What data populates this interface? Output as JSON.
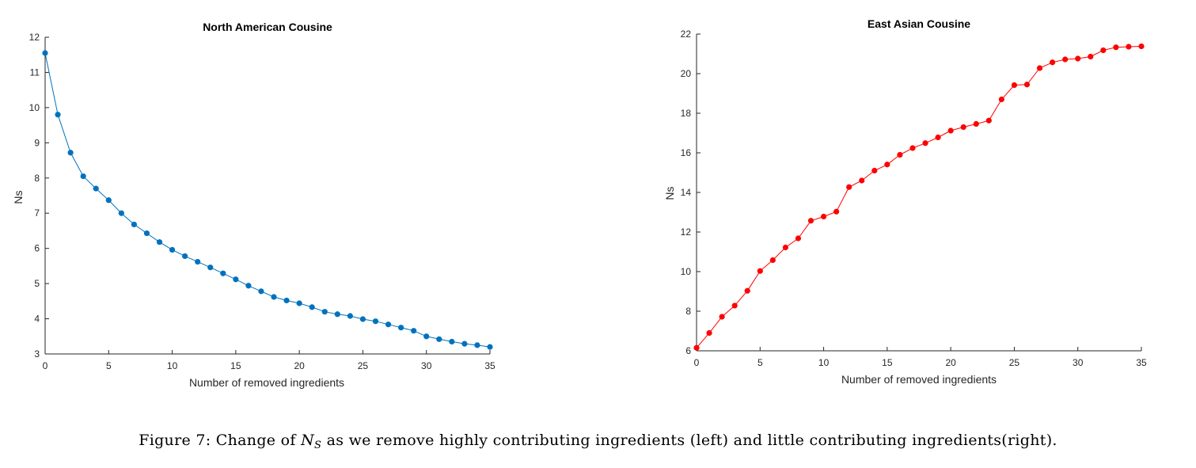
{
  "chart_data": [
    {
      "type": "line",
      "title": "North American Cousine",
      "xlabel": "Number of removed ingredients",
      "ylabel": "Ns",
      "xlim": [
        0,
        35
      ],
      "ylim": [
        3,
        12
      ],
      "xticks": [
        0,
        5,
        10,
        15,
        20,
        25,
        30,
        35
      ],
      "yticks": [
        3,
        4,
        5,
        6,
        7,
        8,
        9,
        10,
        11,
        12
      ],
      "grid": false,
      "color": "#0072BD",
      "x": [
        0,
        1,
        2,
        3,
        4,
        5,
        6,
        7,
        8,
        9,
        10,
        11,
        12,
        13,
        14,
        15,
        16,
        17,
        18,
        19,
        20,
        21,
        22,
        23,
        24,
        25,
        26,
        27,
        28,
        29,
        30,
        31,
        32,
        33,
        34,
        35
      ],
      "y": [
        11.55,
        9.8,
        8.72,
        8.05,
        7.7,
        7.37,
        7.0,
        6.68,
        6.43,
        6.18,
        5.96,
        5.78,
        5.62,
        5.46,
        5.29,
        5.12,
        4.94,
        4.78,
        4.62,
        4.52,
        4.44,
        4.33,
        4.2,
        4.13,
        4.08,
        3.99,
        3.93,
        3.84,
        3.75,
        3.66,
        3.5,
        3.42,
        3.35,
        3.29,
        3.25,
        3.2
      ]
    },
    {
      "type": "line",
      "title": "East Asian Cousine",
      "xlabel": "Number of removed ingredients",
      "ylabel": "Ns",
      "xlim": [
        0,
        35
      ],
      "ylim": [
        6,
        22
      ],
      "xticks": [
        0,
        5,
        10,
        15,
        20,
        25,
        30,
        35
      ],
      "yticks": [
        6,
        8,
        10,
        12,
        14,
        16,
        18,
        20,
        22
      ],
      "grid": false,
      "color": "#FF0000",
      "x": [
        0,
        1,
        2,
        3,
        4,
        5,
        6,
        7,
        8,
        9,
        10,
        11,
        12,
        13,
        14,
        15,
        16,
        17,
        18,
        19,
        20,
        21,
        22,
        23,
        24,
        25,
        26,
        27,
        28,
        29,
        30,
        31,
        32,
        33,
        34,
        35
      ],
      "y": [
        6.15,
        6.9,
        7.72,
        8.28,
        9.03,
        10.03,
        10.58,
        11.22,
        11.68,
        12.57,
        12.78,
        13.03,
        14.27,
        14.6,
        15.1,
        15.41,
        15.9,
        16.24,
        16.49,
        16.78,
        17.12,
        17.3,
        17.46,
        17.63,
        18.7,
        19.42,
        19.45,
        20.28,
        20.57,
        20.72,
        20.76,
        20.86,
        21.18,
        21.33,
        21.36,
        21.38
      ]
    }
  ],
  "caption": {
    "prefix": "Figure 7:  Change of ",
    "symbol": "N",
    "subscript": "S",
    "suffix": " as we remove highly contributing ingredients (left) and little contributing ingredients(right)."
  }
}
